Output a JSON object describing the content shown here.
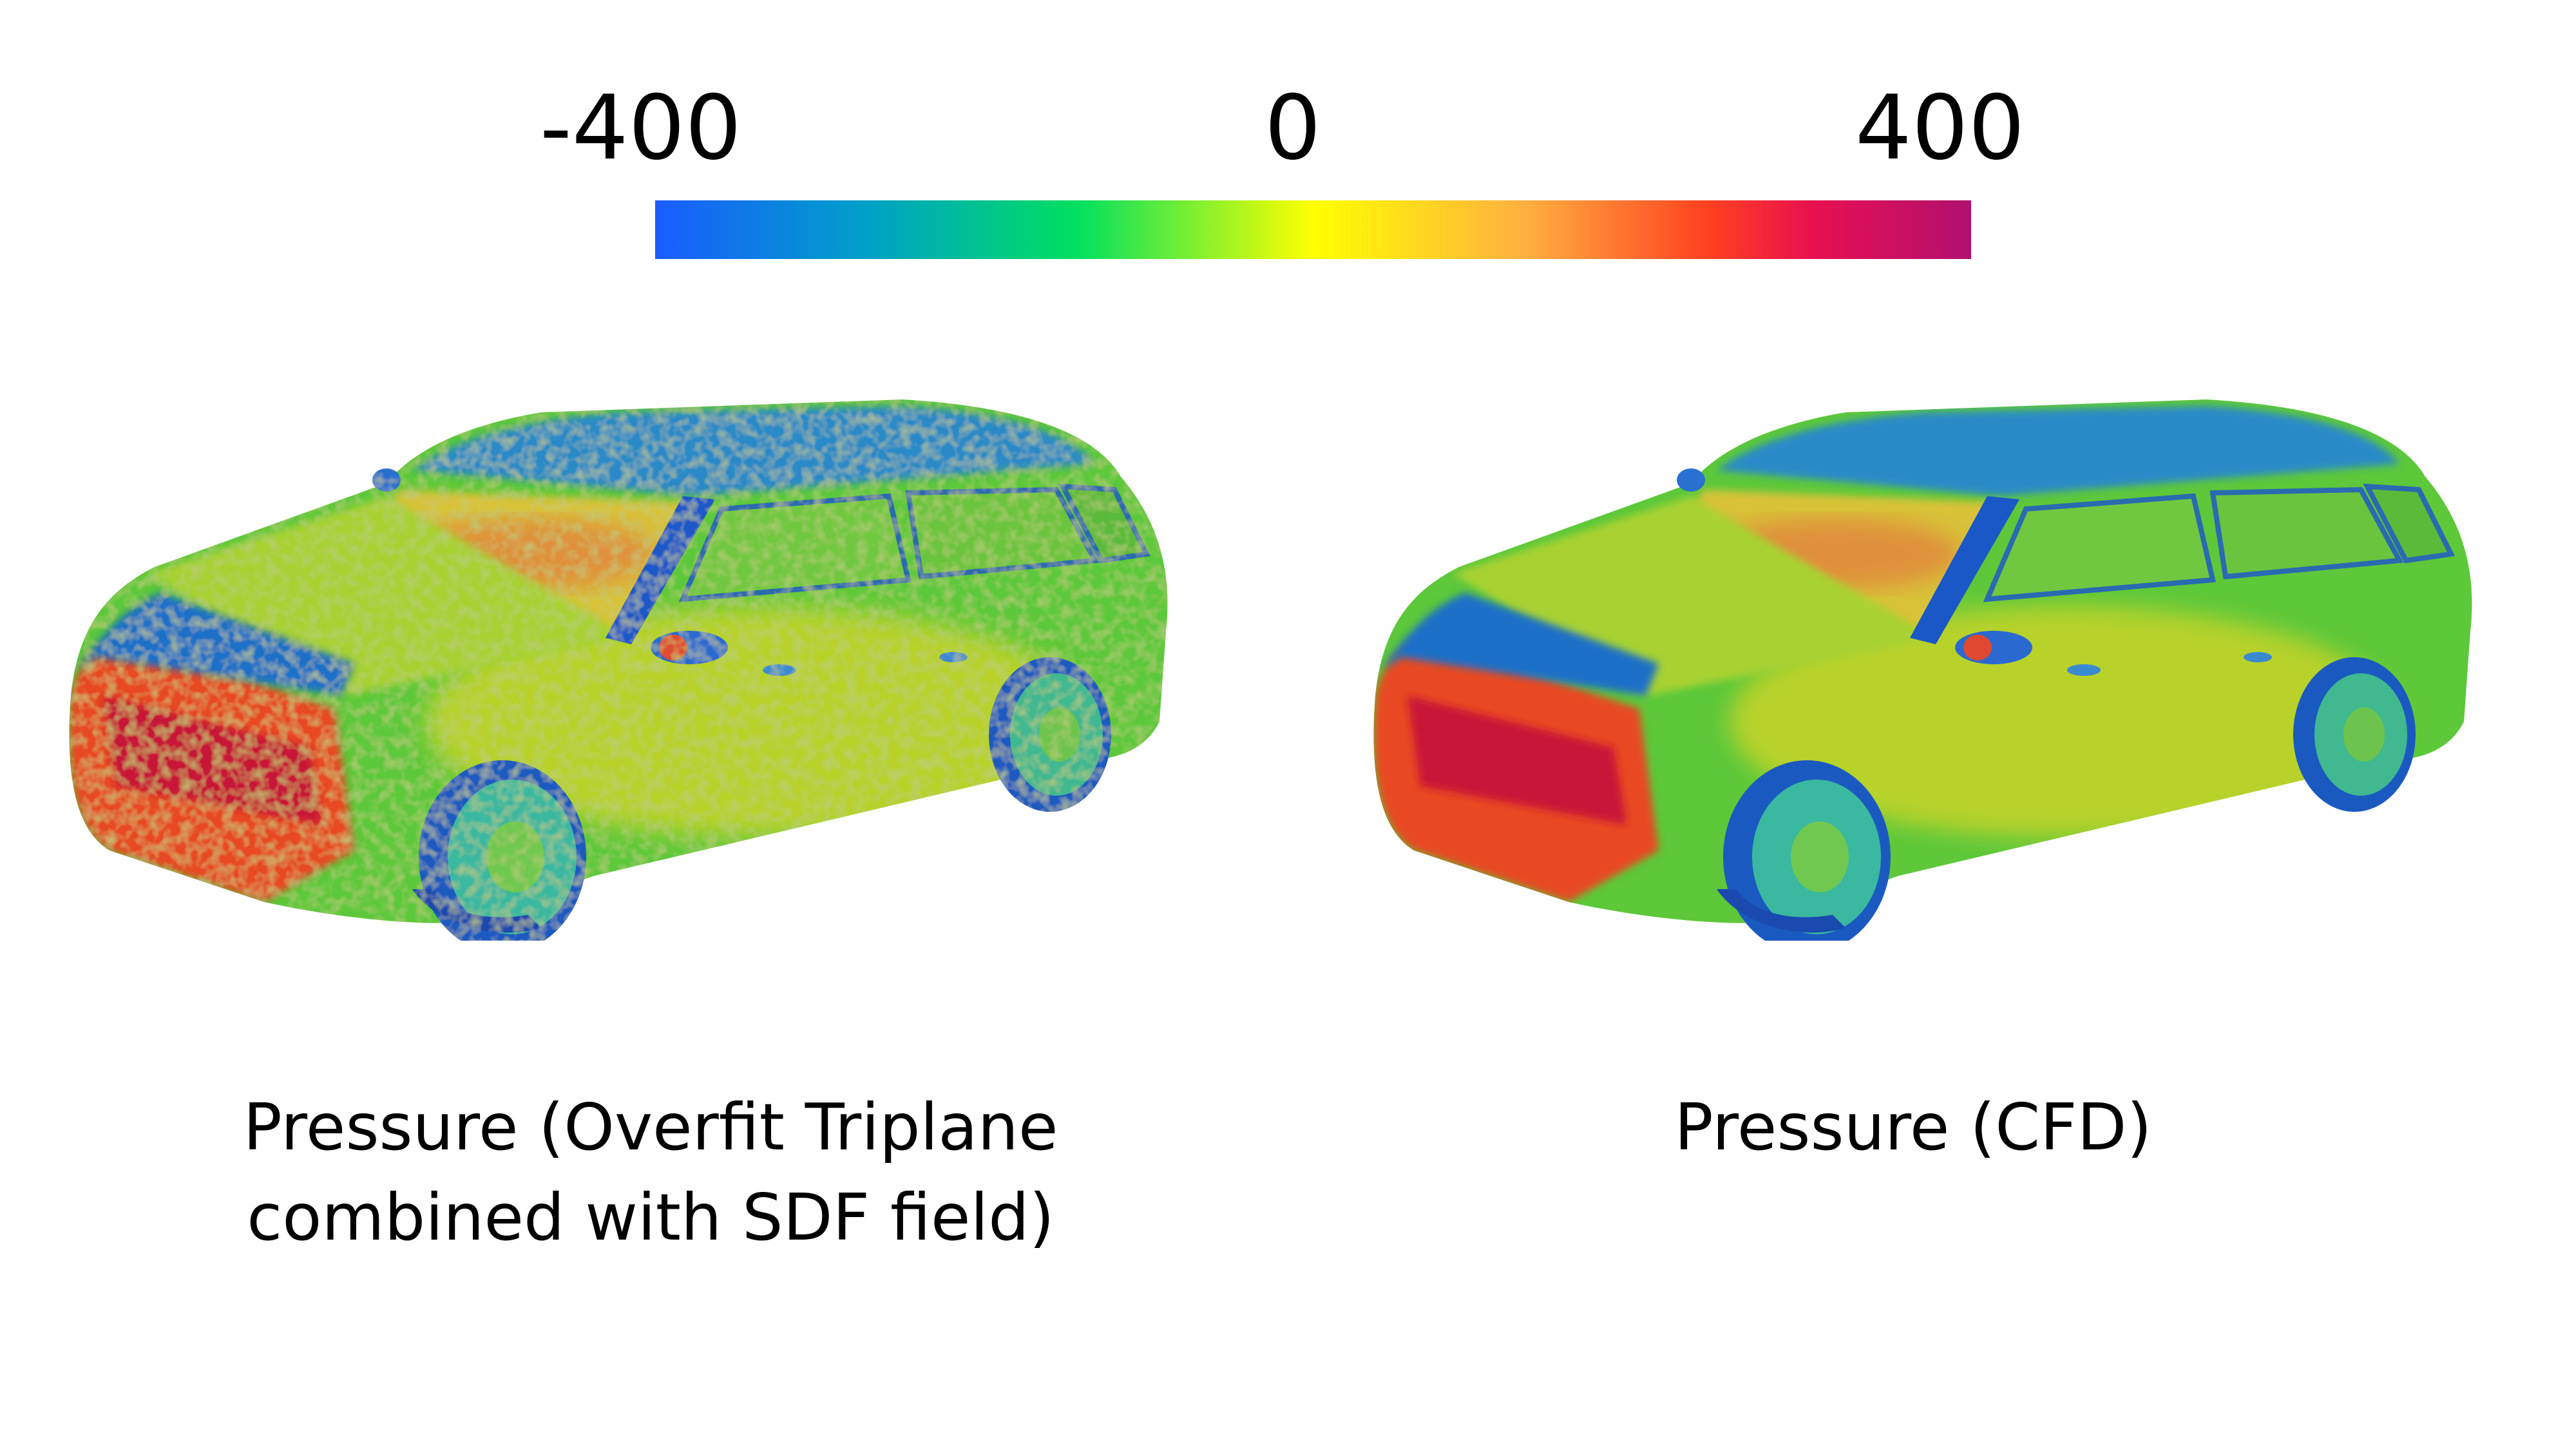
{
  "colorbar": {
    "min_label": "-400",
    "mid_label": "0",
    "max_label": "400",
    "range": [
      -400,
      400
    ],
    "stops": [
      {
        "offset": 0.0,
        "color": "#1a5cff"
      },
      {
        "offset": 0.16,
        "color": "#00a0c8"
      },
      {
        "offset": 0.32,
        "color": "#00e060"
      },
      {
        "offset": 0.5,
        "color": "#ffff00"
      },
      {
        "offset": 0.66,
        "color": "#ffb040"
      },
      {
        "offset": 0.8,
        "color": "#ff4020"
      },
      {
        "offset": 0.88,
        "color": "#e81050"
      },
      {
        "offset": 1.0,
        "color": "#b01070"
      }
    ]
  },
  "panels": [
    {
      "caption_line1": "Pressure (Overfit Triplane",
      "caption_line2": "combined with SDF field)",
      "surface": "noisy"
    },
    {
      "caption_line1": "Pressure (CFD)",
      "caption_line2": "",
      "surface": "smooth"
    }
  ]
}
